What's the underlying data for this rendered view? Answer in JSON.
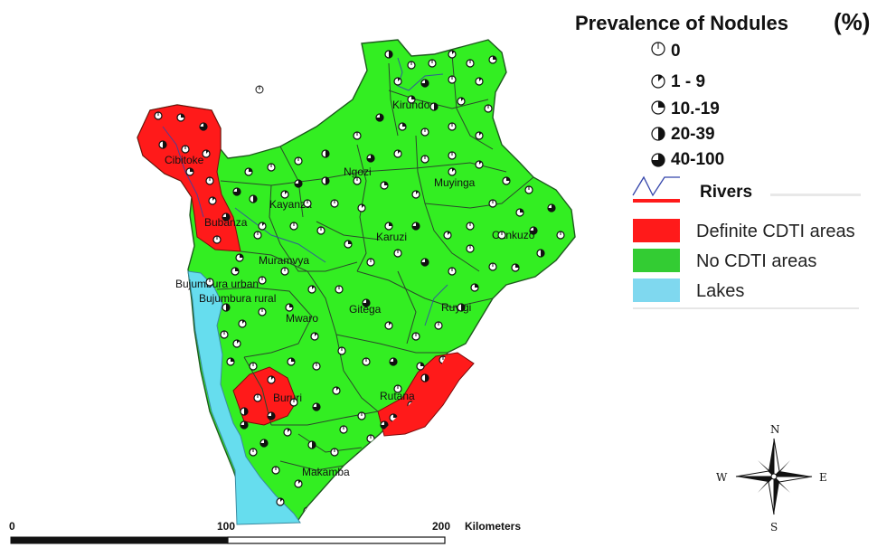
{
  "legend": {
    "title": "Prevalence of Nodules",
    "unit": "(%)",
    "classes": [
      {
        "label": "0",
        "fill_fraction": 0
      },
      {
        "label": "1 - 9",
        "fill_fraction": 0.125
      },
      {
        "label": "10.-19",
        "fill_fraction": 0.25
      },
      {
        "label": "20-39",
        "fill_fraction": 0.5
      },
      {
        "label": "40-100",
        "fill_fraction": 0.75
      }
    ],
    "rivers": "Rivers",
    "areas": [
      {
        "label": "Definite CDTI areas",
        "color": "#ff1a1a"
      },
      {
        "label": "No CDTI areas",
        "color": "#33cc33"
      },
      {
        "label": "Lakes",
        "color": "#7fd8ef"
      }
    ]
  },
  "map": {
    "colors": {
      "land": "#33ee22",
      "cdti": "#ff1a1a",
      "lake": "#66ddee",
      "boundary": "#2b4a2b",
      "river": "#3344aa"
    },
    "provinces": [
      "Kirundo",
      "Cibitoke",
      "Ngozi",
      "Muyinga",
      "Kayanza",
      "Bubanza",
      "Karuzi",
      "Cankuzo",
      "Muramvya",
      "Bujumbura urban",
      "Bujumbura rural",
      "Gitega",
      "Ruyigi",
      "Mwaro",
      "Bururi",
      "Rutana",
      "Makamba"
    ]
  },
  "scale": {
    "ticks": [
      "0",
      "100",
      "200"
    ],
    "unit": "Kilometers"
  },
  "compass": {
    "n": "N",
    "s": "S",
    "e": "E",
    "w": "W"
  }
}
